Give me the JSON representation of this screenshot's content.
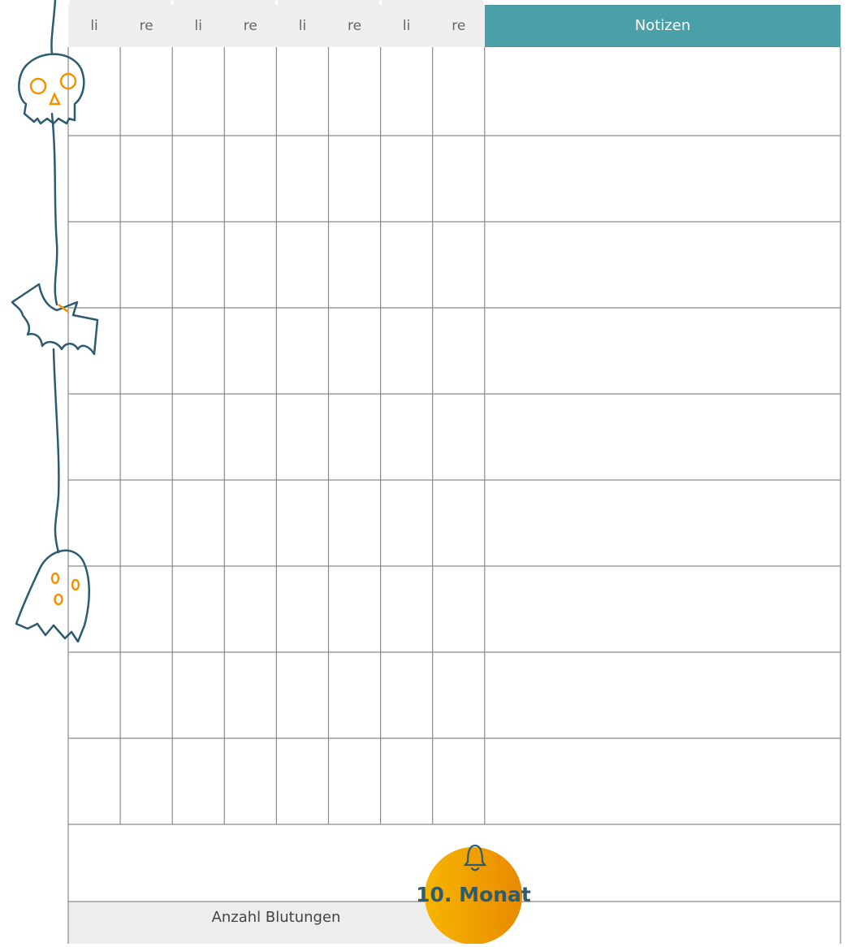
{
  "table": {
    "header": [
      "li",
      "re",
      "li",
      "re",
      "li",
      "re",
      "li",
      "re"
    ],
    "notes_header": "Notizen"
  },
  "footer": {
    "label": "Anzahl Blutungen"
  },
  "badge": {
    "label": "10. Monat"
  }
}
